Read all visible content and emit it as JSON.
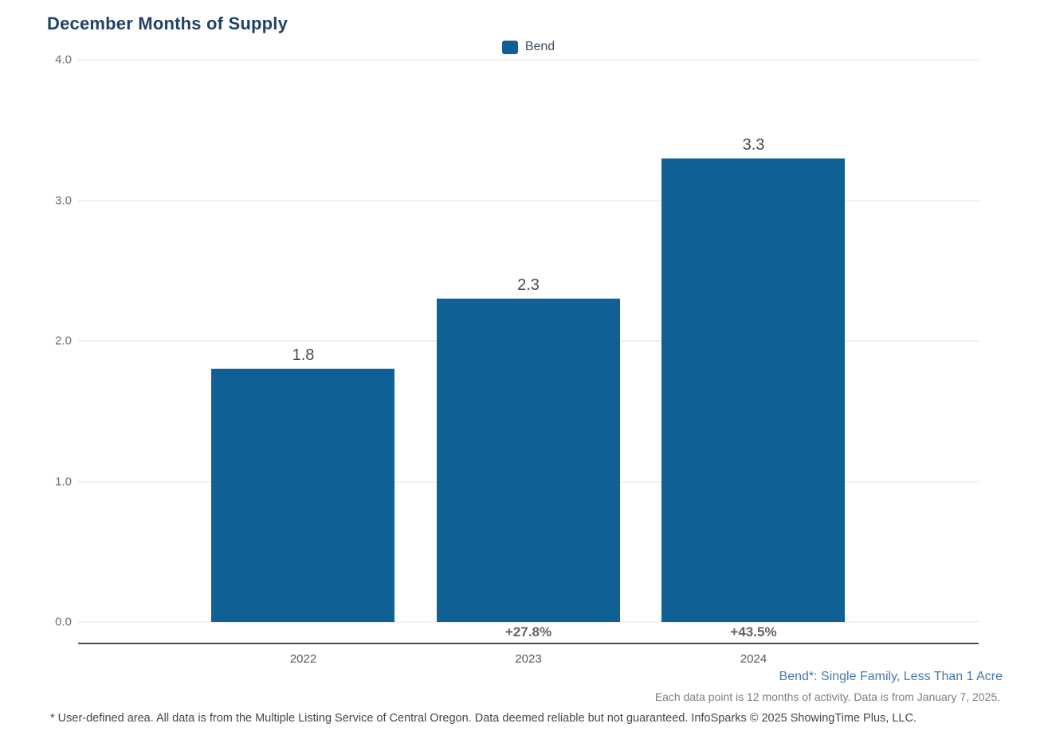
{
  "title": "December Months of Supply",
  "colors": {
    "bar": "#0f6195",
    "grid": "#e2e2e2",
    "axis_line": "#4e4f52",
    "title_text": "#1f4266",
    "tick_label": "#6e6e6e",
    "value_label": "#4a4a4a",
    "pct_label": "#636466",
    "x_label": "#55575a",
    "legend_label": "#3c4d61",
    "series_note": "#4579a8",
    "data_note": "#7b7d80",
    "disclaimer": "#474747"
  },
  "legend": {
    "position": "top-center",
    "items": [
      {
        "label": "Bend",
        "color": "#0f6195"
      }
    ]
  },
  "chart_data": {
    "type": "bar",
    "title": "December Months of Supply",
    "categories": [
      "2022",
      "2023",
      "2024"
    ],
    "series": [
      {
        "name": "Bend",
        "values": [
          1.8,
          2.3,
          3.3
        ]
      }
    ],
    "value_labels": [
      "1.8",
      "2.3",
      "3.3"
    ],
    "change_labels": [
      "",
      "+27.8%",
      "+43.5%"
    ],
    "y_ticks": [
      "0.0",
      "1.0",
      "2.0",
      "3.0",
      "4.0"
    ],
    "ylim": [
      0,
      4
    ],
    "xlabel": "",
    "ylabel": "",
    "grid": true,
    "legend_position": "top-center"
  },
  "footnotes": {
    "series_note": "Bend*: Single Family, Less Than 1 Acre",
    "data_note": "Each data point is 12 months of activity. Data is from January 7, 2025.",
    "disclaimer": "* User-defined area. All data is from the Multiple Listing Service of Central Oregon. Data deemed reliable but not guaranteed. InfoSparks © 2025 ShowingTime Plus, LLC."
  }
}
